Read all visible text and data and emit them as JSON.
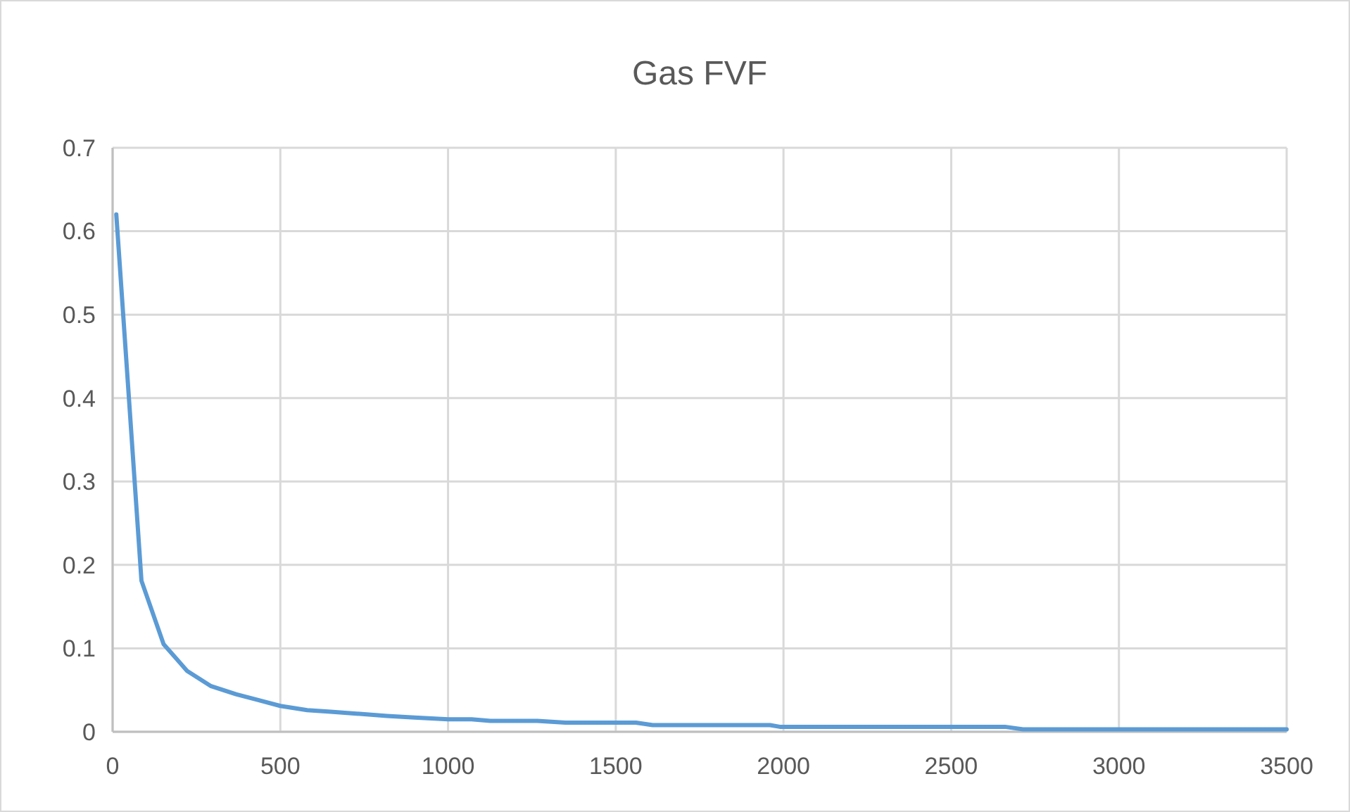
{
  "chart_data": {
    "type": "line",
    "title": "Gas FVF",
    "x": [
      11,
      86,
      152,
      222,
      292,
      368,
      434,
      500,
      580,
      650,
      720,
      818,
      900,
      1000,
      1070,
      1126,
      1200,
      1266,
      1350,
      1420,
      1500,
      1560,
      1610,
      1700,
      1800,
      1900,
      1960,
      1989,
      2050,
      2200,
      2400,
      2600,
      2660,
      2714,
      2800,
      3000,
      3200,
      3500
    ],
    "series": [
      {
        "color": "#5b9bd5",
        "values": [
          0.62,
          0.181,
          0.105,
          0.073,
          0.055,
          0.045,
          0.038,
          0.031,
          0.026,
          0.024,
          0.022,
          0.019,
          0.017,
          0.015,
          0.015,
          0.013,
          0.013,
          0.013,
          0.011,
          0.011,
          0.011,
          0.011,
          0.008,
          0.008,
          0.008,
          0.008,
          0.008,
          0.006,
          0.006,
          0.006,
          0.006,
          0.006,
          0.006,
          0.003,
          0.003,
          0.003,
          0.003,
          0.003
        ]
      }
    ],
    "xlim": [
      0,
      3500
    ],
    "xticks": [
      0,
      500,
      1000,
      1500,
      2000,
      2500,
      3000,
      3500
    ],
    "ylim": [
      0,
      0.7
    ],
    "yticks": [
      0,
      0.1,
      0.2,
      0.3,
      0.4,
      0.5,
      0.6,
      0.7
    ],
    "grid": true,
    "marker": "none",
    "line_style": "solid"
  }
}
